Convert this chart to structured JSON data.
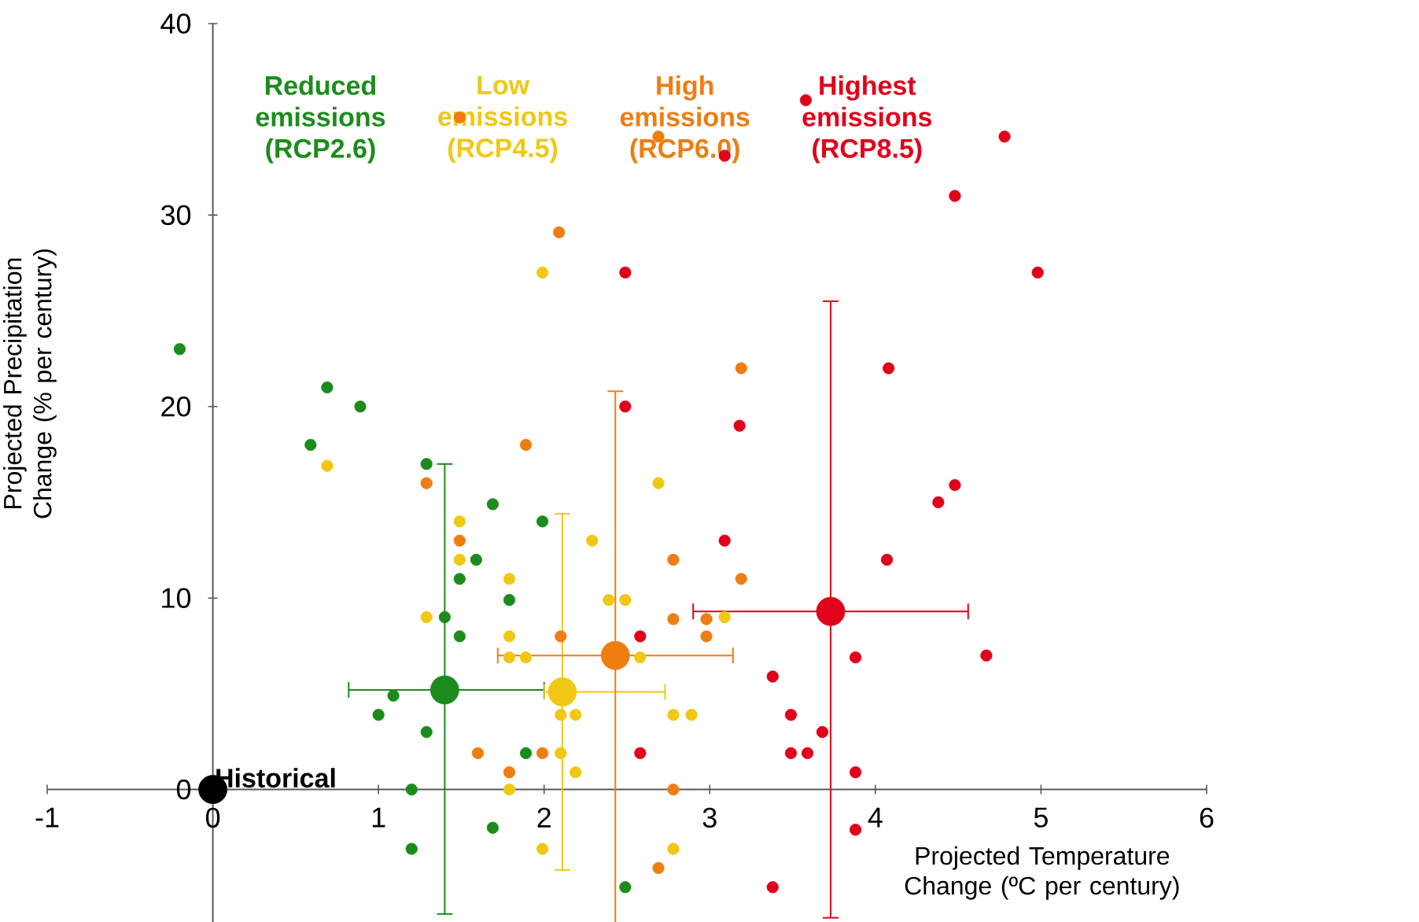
{
  "chart_data": {
    "type": "scatter",
    "xlabel": "Projected Temperature Change (ºC per century)",
    "ylabel": "Projected Precipitation Change (% per century)",
    "xlim": [
      -1,
      6
    ],
    "xticks": [
      -1,
      0,
      1,
      2,
      3,
      4,
      5,
      6
    ],
    "ylim": [
      -7,
      40
    ],
    "yticks": [
      0,
      10,
      20,
      30,
      40
    ],
    "marker": "circle",
    "annotations": [
      {
        "text": "Historical",
        "x": 0,
        "y": 0
      }
    ],
    "series": [
      {
        "name": "Reduced emissions (RCP2.6)",
        "color": "#1b8c1b",
        "x": [
          -0.2,
          0.69,
          0.89,
          0.59,
          1.29,
          1.69,
          1.99,
          1.59,
          1.49,
          1.79,
          1.4,
          1.49,
          1.09,
          1.0,
          1.29,
          1.89,
          1.2,
          1.69,
          1.2,
          2.49
        ],
        "values": [
          23,
          21,
          20,
          18,
          17,
          14.9,
          14,
          12,
          11,
          9.9,
          9,
          8,
          4.9,
          3.9,
          3,
          1.9,
          0,
          -2,
          -3.1,
          -5.1
        ]
      },
      {
        "name": "Low emissions (RCP4.5)",
        "color": "#f0c814",
        "x": [
          0.69,
          1.99,
          1.49,
          1.49,
          1.79,
          2.29,
          1.29,
          1.79,
          1.79,
          1.89,
          2.1,
          2.19,
          2.1,
          2.19,
          1.79,
          1.99,
          2.58,
          2.78,
          2.89,
          2.78,
          3.09,
          2.69,
          2.39,
          2.49
        ],
        "values": [
          16.9,
          27,
          14,
          12,
          11,
          13,
          9,
          8,
          6.9,
          6.9,
          3.9,
          3.9,
          1.9,
          0.9,
          0,
          -3.1,
          6.9,
          3.9,
          3.9,
          -3.1,
          9,
          16,
          9.9,
          9.9
        ]
      },
      {
        "name": "High emissions (RCP6.0)",
        "color": "#ee7d12",
        "x": [
          1.49,
          2.69,
          2.09,
          1.89,
          1.29,
          1.49,
          3.19,
          2.78,
          3.19,
          2.78,
          2.98,
          2.1,
          1.6,
          1.99,
          1.79,
          2.98,
          2.78,
          2.69
        ],
        "values": [
          35.1,
          34.1,
          29.1,
          18,
          16,
          13,
          22,
          12,
          11,
          8.9,
          8.9,
          8,
          1.9,
          1.9,
          0.9,
          8,
          0,
          -4.1
        ]
      },
      {
        "name": "Highest emissions (RCP8.5)",
        "color": "#e0001a",
        "x": [
          3.58,
          3.09,
          4.78,
          4.48,
          4.98,
          4.08,
          3.18,
          4.48,
          4.38,
          3.09,
          4.07,
          2.49,
          2.49,
          2.58,
          3.88,
          3.38,
          3.49,
          3.68,
          2.58,
          3.49,
          3.59,
          3.88,
          3.88,
          3.38,
          4.67
        ],
        "values": [
          36,
          33.1,
          34.1,
          31,
          27,
          22,
          19,
          15.9,
          15,
          13,
          12,
          27,
          20,
          8,
          6.9,
          5.9,
          3.9,
          3,
          1.9,
          1.9,
          1.9,
          0.9,
          -2.1,
          -5.1,
          7
        ]
      },
      {
        "color": "#1b8c1b",
        "x": [
          1.4
        ],
        "values": [
          5.2
        ],
        "xerrors": [
          [
            0.82,
            2.0
          ]
        ],
        "errors": [
          [
            -6.5,
            17
          ]
        ]
      },
      {
        "color": "#f0c814",
        "x": [
          2.11
        ],
        "values": [
          5.1
        ],
        "xerrors": [
          [
            2.0,
            2.73
          ]
        ],
        "errors": [
          [
            -4.2,
            14.4
          ]
        ]
      },
      {
        "color": "#ee7d12",
        "x": [
          2.43
        ],
        "values": [
          7.0
        ],
        "xerrors": [
          [
            1.72,
            3.14
          ]
        ],
        "errors": [
          [
            -7,
            20.8
          ]
        ]
      },
      {
        "color": "#e0001a",
        "x": [
          3.73
        ],
        "values": [
          9.3
        ],
        "xerrors": [
          [
            2.9,
            4.56
          ]
        ],
        "errors": [
          [
            -6.7,
            25.5
          ]
        ]
      },
      {
        "color": "#000000",
        "x": [
          0
        ],
        "values": [
          0
        ]
      }
    ]
  }
}
